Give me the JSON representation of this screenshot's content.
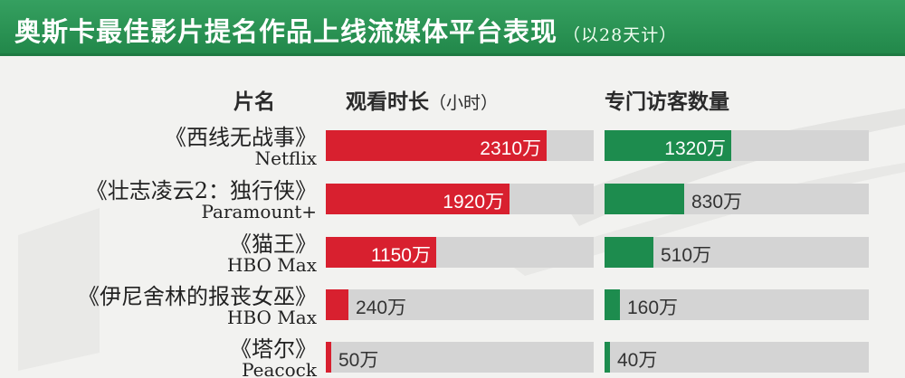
{
  "title": {
    "main": "奥斯卡最佳影片提名作品上线流媒体平台表现",
    "sub": "（以28天计）"
  },
  "headers": {
    "name": "片名",
    "watch": "观看时长",
    "watch_unit": "（小时）",
    "visits": "专门访客数量"
  },
  "colors": {
    "title_bar": "#22884a",
    "watch_bar": "#d8202f",
    "visit_bar": "#1d8c4e",
    "track": "#d4d4d4"
  },
  "chart_data": [
    {
      "type": "bar",
      "orientation": "horizontal",
      "ylabel": "观看时长（小时）",
      "categories": [
        "《西线无战事》",
        "《壮志凌云2：独行侠》",
        "《猫王》",
        "《伊尼舍林的报丧女巫》",
        "《塔尔》"
      ],
      "platforms": [
        "Netflix",
        "Paramount+",
        "HBO Max",
        "HBO Max",
        "Peacock"
      ],
      "values": [
        2310,
        1920,
        1150,
        240,
        50
      ],
      "labels": [
        "2310万",
        "1920万",
        "1150万",
        "240万",
        "50万"
      ],
      "xlim": [
        0,
        2800
      ]
    },
    {
      "type": "bar",
      "orientation": "horizontal",
      "ylabel": "专门访客数量",
      "categories": [
        "《西线无战事》",
        "《壮志凌云2：独行侠》",
        "《猫王》",
        "《伊尼舍林的报丧女巫》",
        "《塔尔》"
      ],
      "platforms": [
        "Netflix",
        "Paramount+",
        "HBO Max",
        "HBO Max",
        "Peacock"
      ],
      "values": [
        1320,
        830,
        510,
        160,
        40
      ],
      "labels": [
        "1320万",
        "830万",
        "510万",
        "160万",
        "40万"
      ],
      "xlim": [
        0,
        2800
      ]
    }
  ]
}
